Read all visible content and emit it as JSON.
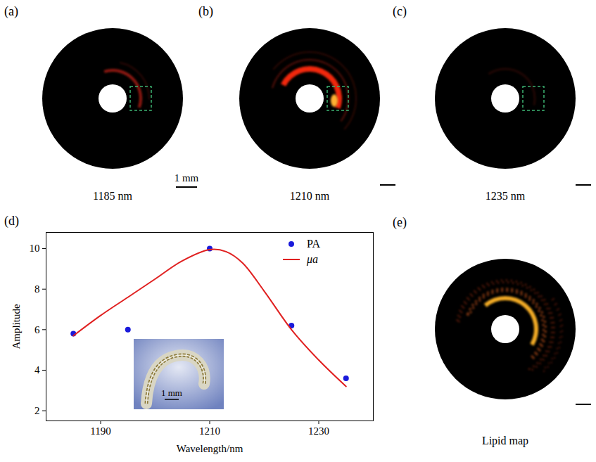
{
  "images": [
    {
      "letter": "(a)",
      "caption": "1185 nm",
      "scale_bar": "1 mm"
    },
    {
      "letter": "(b)",
      "caption": "1210 nm"
    },
    {
      "letter": "(c)",
      "caption": "1235 nm"
    },
    {
      "letter": "(e)",
      "caption": "Lipid map"
    }
  ],
  "chart_data": {
    "letter": "(d)",
    "type": "line",
    "x_label": "Wavelength/nm",
    "y_label": "Amplitude",
    "xlim": [
      1180,
      1240
    ],
    "ylim": [
      1.5,
      10.8
    ],
    "xticks": [
      1190,
      1210,
      1230
    ],
    "yticks": [
      2,
      4,
      6,
      8,
      10
    ],
    "legend": "top-right",
    "inset_scale_bar": "1 mm",
    "series": [
      {
        "name": "PA",
        "type": "scatter",
        "marker": "circle",
        "color": "#1a1adb",
        "x": [
          1185,
          1195,
          1210,
          1225,
          1235
        ],
        "values": [
          5.8,
          6.0,
          10.0,
          6.2,
          3.6
        ]
      },
      {
        "name": "μa",
        "type": "line",
        "line_style": "solid",
        "color": "#e02020",
        "x": [
          1185,
          1190,
          1195,
          1200,
          1205,
          1210,
          1213,
          1216,
          1220,
          1225,
          1230,
          1235
        ],
        "values": [
          5.7,
          6.7,
          7.6,
          8.5,
          9.4,
          9.95,
          9.85,
          9.3,
          7.9,
          6.0,
          4.5,
          3.2
        ]
      }
    ]
  }
}
